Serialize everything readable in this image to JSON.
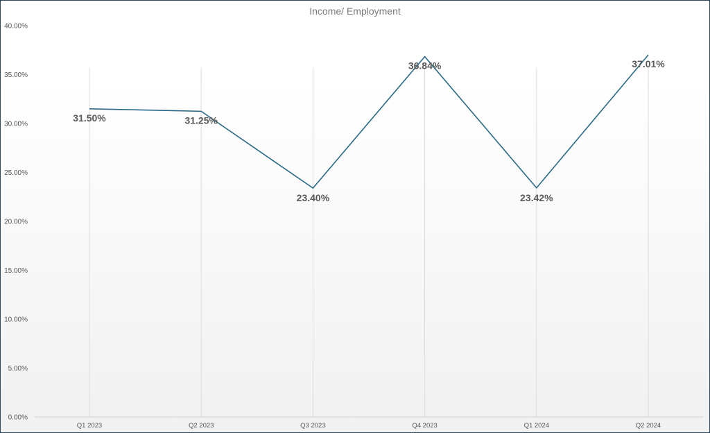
{
  "chart_data": {
    "type": "line",
    "title": "Income/ Employment",
    "xlabel": "",
    "ylabel": "",
    "categories": [
      "Q1 2023",
      "Q2 2023",
      "Q3 2023",
      "Q4 2023",
      "Q1 2024",
      "Q2 2024"
    ],
    "values": [
      31.5,
      31.25,
      23.4,
      36.84,
      23.42,
      37.01
    ],
    "value_labels": [
      "31.50%",
      "31.25%",
      "23.40%",
      "36.84%",
      "23.42%",
      "37.01%"
    ],
    "ylim": [
      0,
      40
    ],
    "yticks": [
      0,
      5,
      10,
      15,
      20,
      25,
      30,
      35,
      40
    ],
    "ytick_labels": [
      "0.00%",
      "5.00%",
      "10.00%",
      "15.00%",
      "20.00%",
      "25.00%",
      "30.00%",
      "35.00%",
      "40.00%"
    ],
    "line_color": "#2a6a86",
    "grid": "vertical",
    "legend": "none"
  }
}
